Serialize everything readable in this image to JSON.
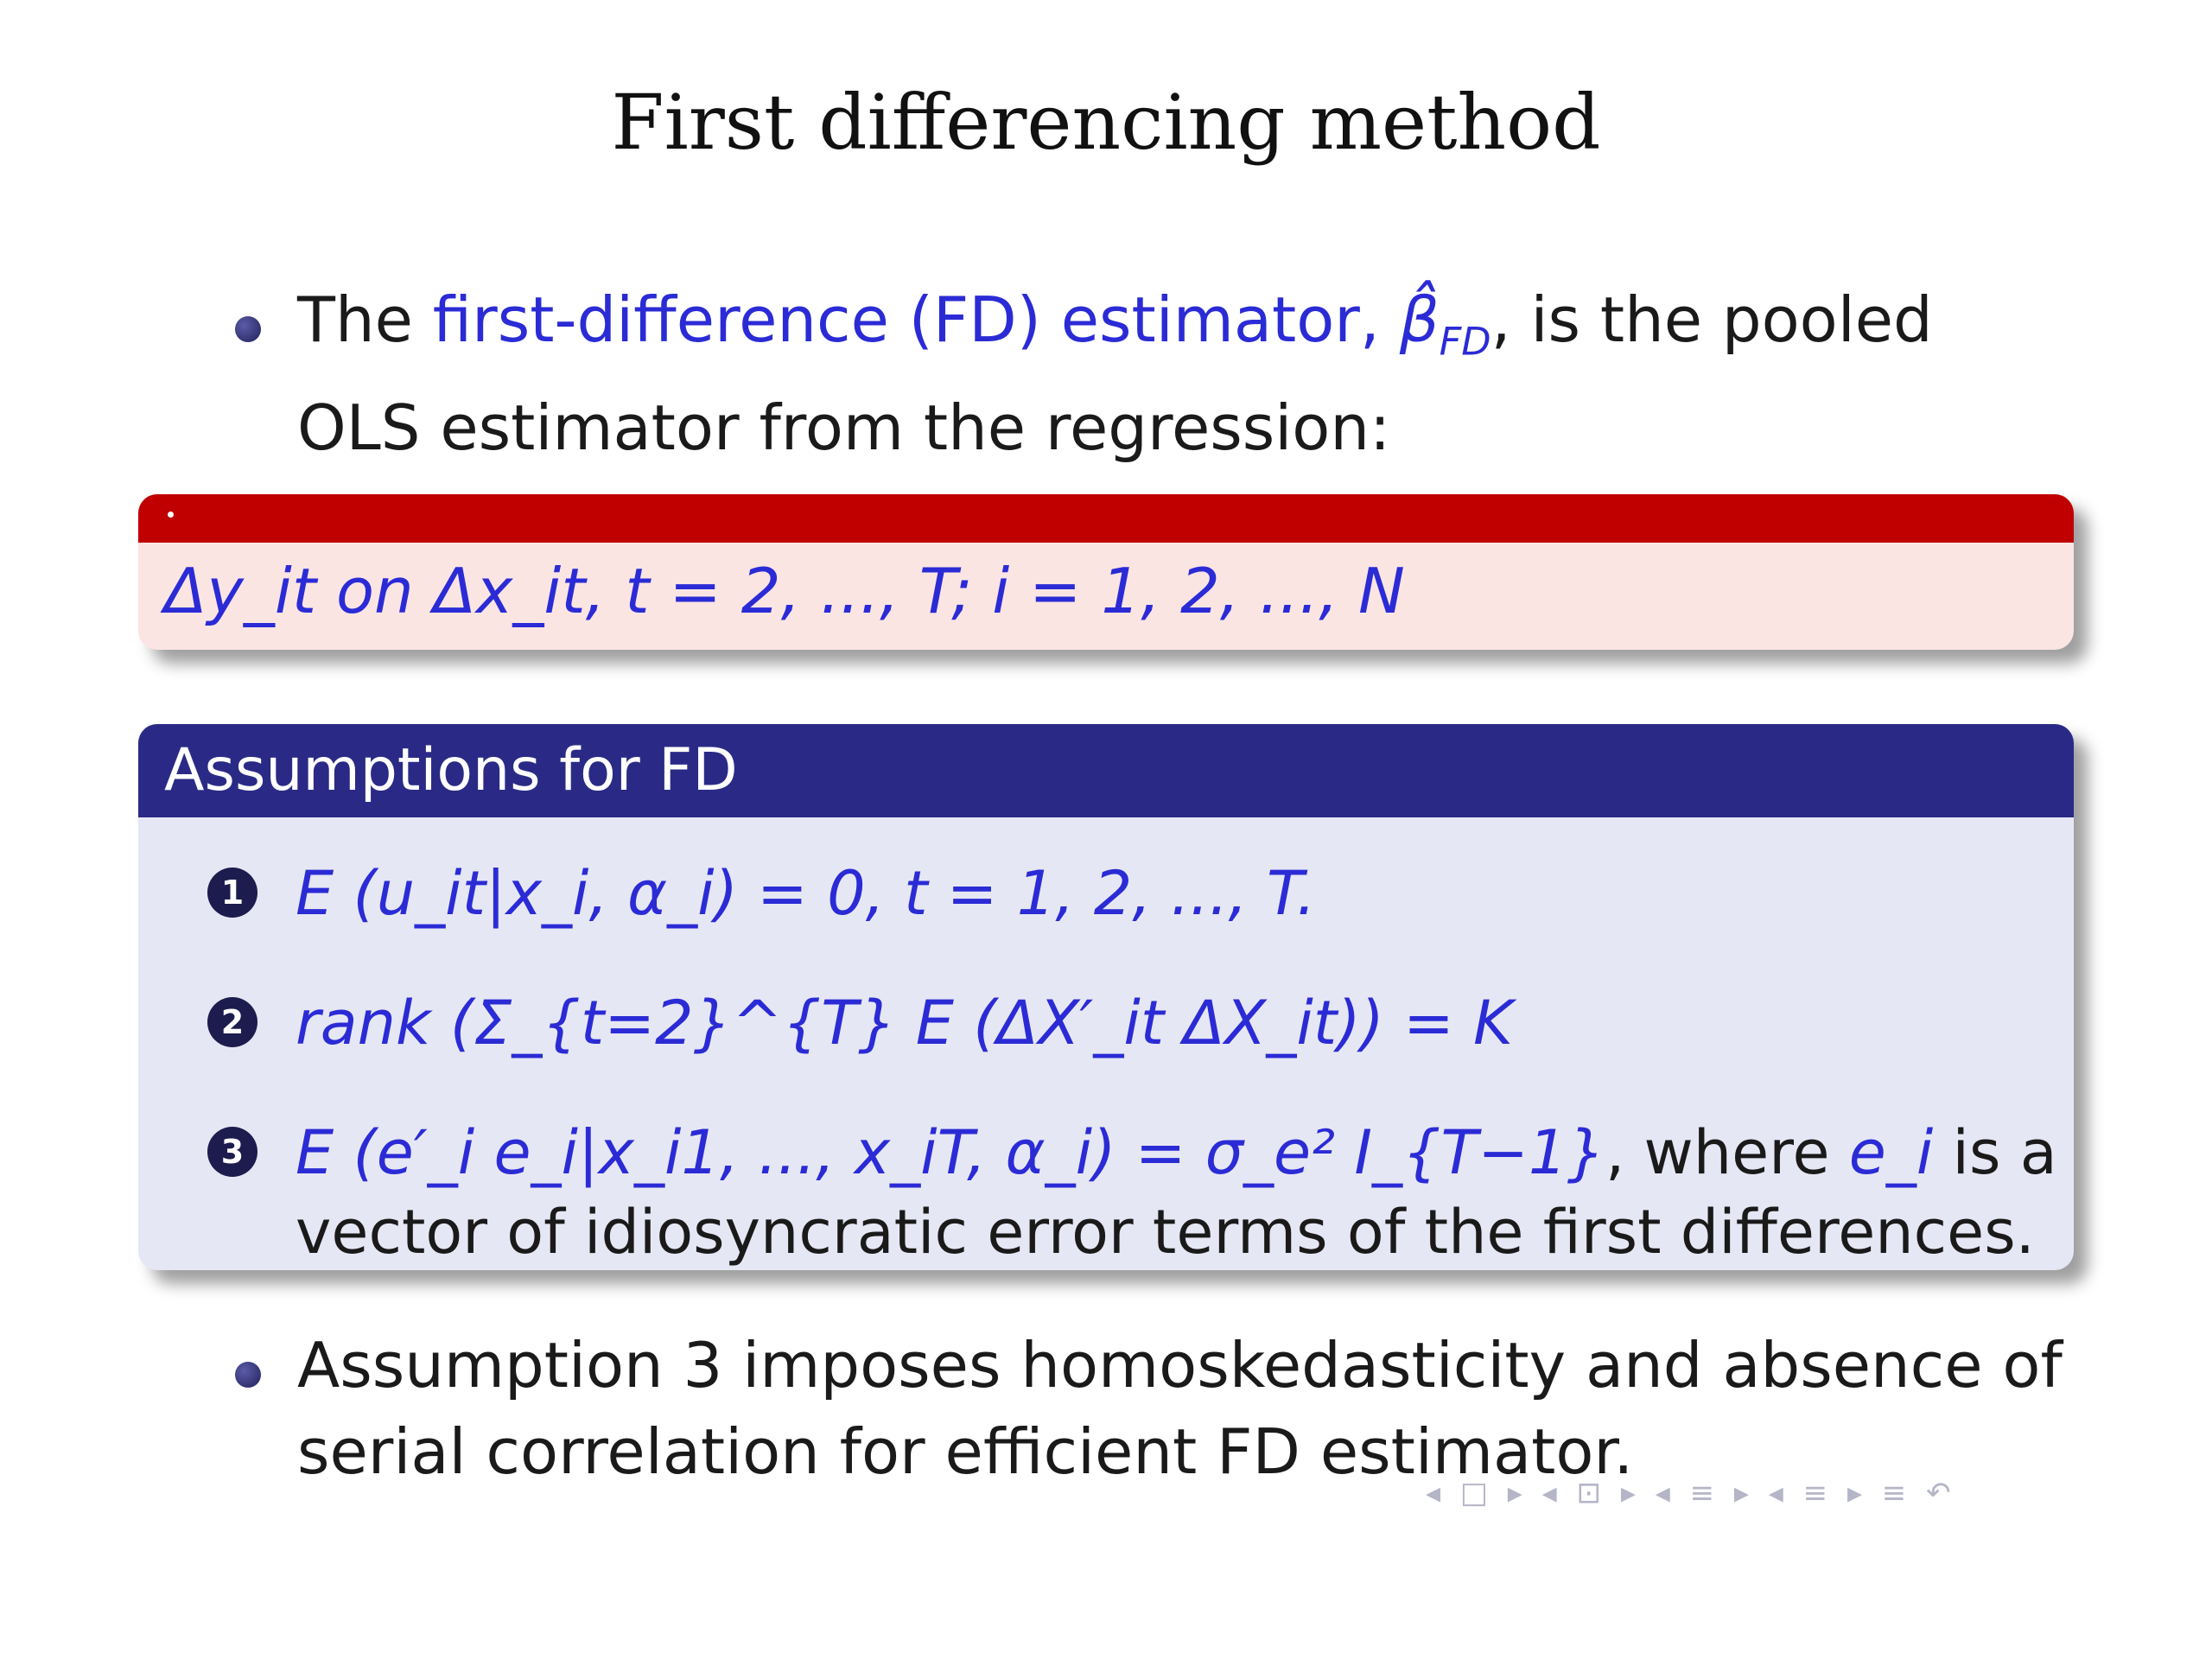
{
  "slide": {
    "title": "First differencing method",
    "bullet1": {
      "pre": "The ",
      "highlight": "first-difference (FD) estimator, ",
      "beta": "β̂",
      "beta_sub": "FD",
      "post": ", is the pooled OLS estimator from the regression:"
    },
    "red_block": {
      "formula": "Δy_it on Δx_it,    t = 2, ..., T;  i = 1, 2, ..., N"
    },
    "blue_block": {
      "title": "Assumptions for FD",
      "items": [
        {
          "num": "1",
          "formula": "E (u_it|x_i, α_i) = 0,        t = 1, 2, ..., T."
        },
        {
          "num": "2",
          "formula": "rank (Σ_{t=2}^{T} E (ΔX′_it ΔX_it)) = K"
        },
        {
          "num": "3",
          "formula": "E (e′_i e_i|x_i1, ..., x_iT, α_i) = σ_e² I_{T−1}",
          "text": ", where ",
          "var": "e_i",
          "rest": " is a vector of idiosyncratic error terms of the first differences."
        }
      ]
    },
    "bullet2": "Assumption 3 imposes homoskedasticity and absence of serial correlation for efficient FD estimator.",
    "nav_icons": "◂ □ ▸  ◂ ⊡ ▸  ◂ ≡ ▸  ◂ ≡ ▸   ≡   ↶"
  }
}
